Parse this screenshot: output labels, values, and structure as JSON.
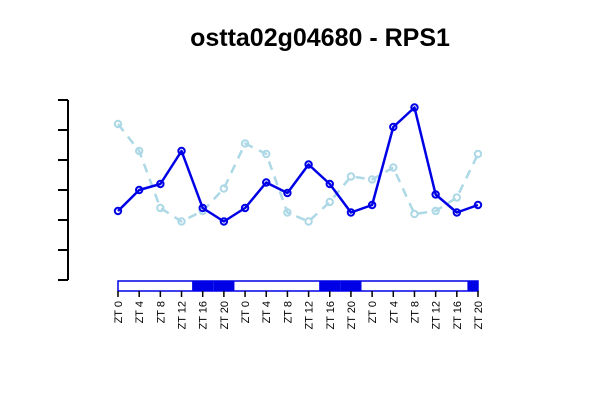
{
  "chart_data": {
    "type": "line",
    "title": "ostta02g04680 - RPS1",
    "xlabel": "",
    "ylabel": "",
    "categories": [
      "ZT 0",
      "ZT 4",
      "ZT 8",
      "ZT 12",
      "ZT 16",
      "ZT 20",
      "ZT 0",
      "ZT 4",
      "ZT 8",
      "ZT 12",
      "ZT 16",
      "ZT 20",
      "ZT 0",
      "ZT 4",
      "ZT 8",
      "ZT 12",
      "ZT 16",
      "ZT 20"
    ],
    "y_ticks_labeled": false,
    "ylim": [
      0,
      6
    ],
    "series": [
      {
        "color": "#0000e6",
        "line_style": "solid",
        "values": [
          2.3,
          3.0,
          3.2,
          4.3,
          2.4,
          1.95,
          2.4,
          3.25,
          2.9,
          3.85,
          3.2,
          2.25,
          2.5,
          5.1,
          5.75,
          2.85,
          2.25,
          2.5
        ]
      },
      {
        "color": "#add8e6",
        "line_style": "dashed",
        "values": [
          5.2,
          4.3,
          2.4,
          1.95,
          2.3,
          3.05,
          4.55,
          4.2,
          2.25,
          1.95,
          2.6,
          3.45,
          3.35,
          3.75,
          2.2,
          2.3,
          2.75,
          4.2
        ]
      }
    ],
    "light_bar": [
      "light",
      "light",
      "light",
      "light",
      "dark",
      "dark",
      "light",
      "light",
      "light",
      "light",
      "dark",
      "dark",
      "light",
      "light",
      "light",
      "light",
      "light",
      "dark"
    ],
    "light_bar_colors": {
      "light": "#ffffff",
      "dark": "#0000e6"
    }
  }
}
